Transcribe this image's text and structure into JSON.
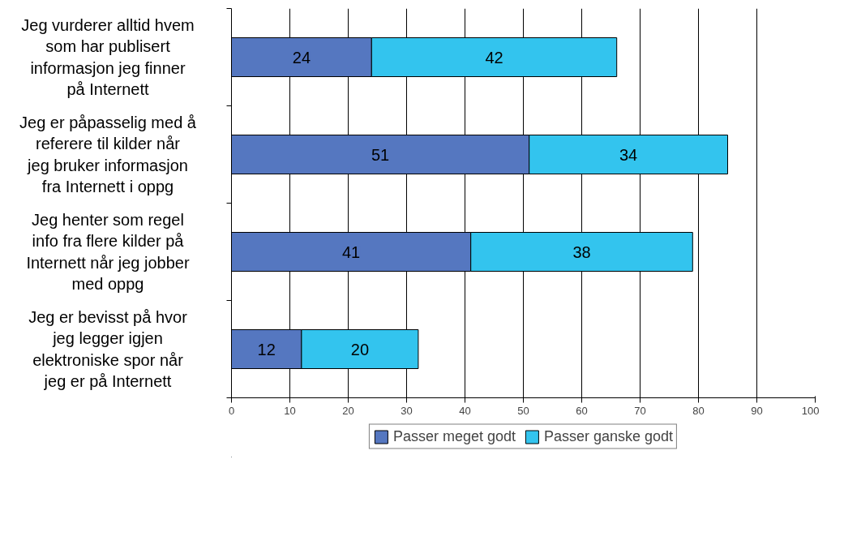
{
  "chart_data": {
    "type": "bar",
    "orientation": "horizontal",
    "stacked": true,
    "categories": [
      "Jeg vurderer alltid hvem som har publisert informasjon jeg finner på Internett",
      "Jeg er påpasselig med å referere til kilder når jeg bruker informasjon fra Internett i oppg",
      "Jeg henter som regel info fra flere kilder på Internett når jeg jobber med oppg",
      "Jeg er bevisst på hvor jeg legger igjen elektroniske spor når jeg er på Internett"
    ],
    "series": [
      {
        "name": "Passer meget godt",
        "color": "#5577c0",
        "values": [
          24,
          51,
          41,
          12
        ]
      },
      {
        "name": "Passer ganske godt",
        "color": "#33c4ee",
        "values": [
          42,
          34,
          38,
          20
        ]
      }
    ],
    "xlim": [
      0,
      100
    ],
    "xticks": [
      0,
      10,
      20,
      30,
      40,
      50,
      60,
      70,
      80,
      90,
      100
    ],
    "grid": "x",
    "legend": "bottom",
    "data_labels": true
  }
}
